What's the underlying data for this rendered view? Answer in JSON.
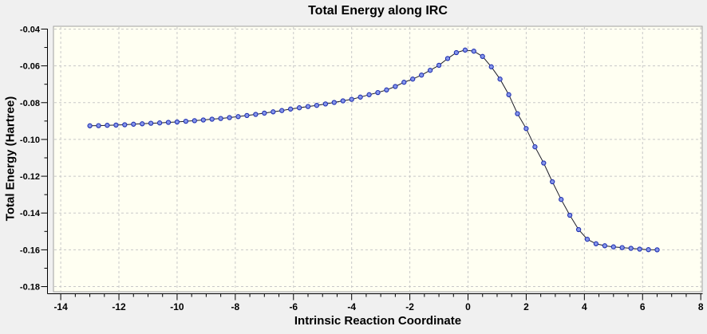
{
  "chart_data": {
    "type": "line",
    "title": "Total Energy along IRC",
    "xlabel": "Intrinsic Reaction Coordinate",
    "ylabel": "Total Energy (Hartree)",
    "xlim": [
      -14.25,
      8.05
    ],
    "ylim": [
      -0.1828,
      -0.0385
    ],
    "x_ticks": [
      -14,
      -12,
      -10,
      -8,
      -6,
      -4,
      -2,
      0,
      2,
      4,
      6,
      8
    ],
    "y_ticks": [
      -0.04,
      -0.06,
      -0.08,
      -0.1,
      -0.12,
      -0.14,
      -0.16,
      -0.18
    ],
    "x_minor_tick_step": 0.5,
    "y_minor_tick_step": 0.01,
    "y_tick_decimals": 2,
    "grid": true,
    "grid_style": "dashed",
    "legend": false,
    "marker": "circle",
    "series": [
      {
        "name": "Total Energy",
        "x": [
          -13.0,
          -12.7,
          -12.4,
          -12.1,
          -11.8,
          -11.5,
          -11.2,
          -10.9,
          -10.6,
          -10.3,
          -10.0,
          -9.7,
          -9.4,
          -9.1,
          -8.8,
          -8.5,
          -8.2,
          -7.9,
          -7.6,
          -7.3,
          -7.0,
          -6.7,
          -6.4,
          -6.1,
          -5.8,
          -5.5,
          -5.2,
          -4.9,
          -4.6,
          -4.3,
          -4.0,
          -3.7,
          -3.4,
          -3.1,
          -2.8,
          -2.5,
          -2.2,
          -1.9,
          -1.6,
          -1.3,
          -1.0,
          -0.7,
          -0.4,
          -0.1,
          0.2,
          0.5,
          0.8,
          1.1,
          1.4,
          1.7,
          2.0,
          2.3,
          2.6,
          2.9,
          3.2,
          3.5,
          3.8,
          4.1,
          4.4,
          4.7,
          5.0,
          5.3,
          5.6,
          5.9,
          6.2,
          6.5
        ],
        "y": [
          -0.0926,
          -0.0925,
          -0.0923,
          -0.0922,
          -0.092,
          -0.0917,
          -0.0915,
          -0.0912,
          -0.091,
          -0.0907,
          -0.0905,
          -0.0901,
          -0.0898,
          -0.0894,
          -0.089,
          -0.0886,
          -0.0881,
          -0.0876,
          -0.087,
          -0.0864,
          -0.0857,
          -0.085,
          -0.0843,
          -0.0835,
          -0.0828,
          -0.0821,
          -0.0815,
          -0.0807,
          -0.0799,
          -0.079,
          -0.0782,
          -0.077,
          -0.0757,
          -0.0745,
          -0.0731,
          -0.0712,
          -0.0689,
          -0.0672,
          -0.065,
          -0.0624,
          -0.0597,
          -0.056,
          -0.0528,
          -0.0514,
          -0.052,
          -0.0549,
          -0.0605,
          -0.0672,
          -0.0757,
          -0.086,
          -0.0941,
          -0.104,
          -0.1128,
          -0.123,
          -0.1326,
          -0.1412,
          -0.149,
          -0.1543,
          -0.1567,
          -0.1578,
          -0.1584,
          -0.1588,
          -0.1592,
          -0.1596,
          -0.1599,
          -0.16
        ]
      }
    ]
  },
  "colors": {
    "page_bg": "#f0f0f0",
    "plot_bg": "#fffff2",
    "plot_border": "#a0a0a0",
    "grid": "#c8c8c8",
    "axis": "#000000",
    "series_line": "#1c1c28",
    "marker_fill": "#8696ea",
    "marker_stroke": "#2030b0",
    "text": "#000000"
  }
}
